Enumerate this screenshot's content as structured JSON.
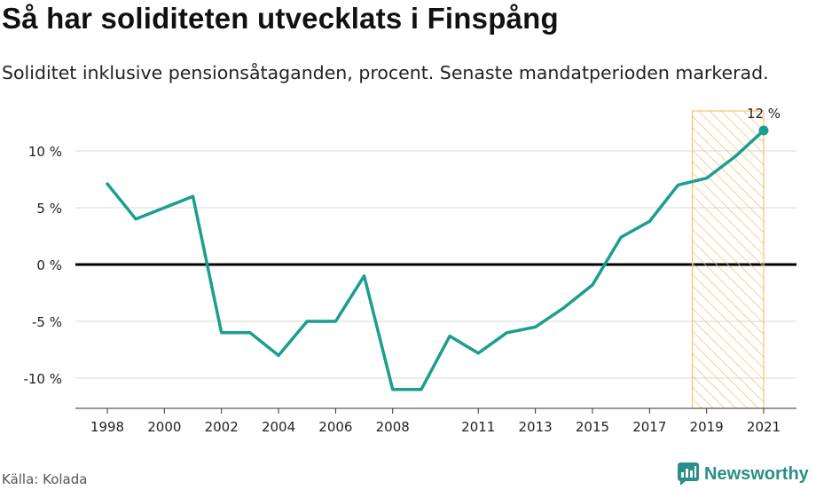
{
  "title": "Så har soliditeten utvecklats i Finspång",
  "subtitle": "Soliditet inklusive pensionsåtaganden, procent. Senaste mandatperioden markerad.",
  "source": "Källa: Kolada",
  "brand": "Newsworthy",
  "colors": {
    "line": "#1a9e8f",
    "zero": "#000000",
    "highlight": "#f5c46b",
    "grid": "#d9d9d9"
  },
  "chart_data": {
    "type": "line",
    "title": "Så har soliditeten utvecklats i Finspång",
    "subtitle": "Soliditet inklusive pensionsåtaganden, procent. Senaste mandatperioden markerad.",
    "x": [
      1998,
      1999,
      2000,
      2001,
      2002,
      2003,
      2004,
      2005,
      2006,
      2007,
      2008,
      2009,
      2010,
      2011,
      2012,
      2013,
      2014,
      2015,
      2016,
      2017,
      2018,
      2019,
      2020,
      2021
    ],
    "series": [
      {
        "values": [
          7.1,
          4.0,
          5.0,
          6.0,
          -6.0,
          -6.0,
          -8.0,
          -5.0,
          -5.0,
          -1.0,
          -11.0,
          -11.0,
          -6.3,
          -7.8,
          -6.0,
          -5.5,
          -3.8,
          -1.8,
          2.4,
          3.8,
          7.0,
          7.6,
          9.5,
          11.8
        ]
      }
    ],
    "xticks": [
      "1998",
      "2000",
      "2002",
      "2004",
      "2006",
      "2008",
      "2011",
      "2013",
      "2015",
      "2017",
      "2019",
      "2021"
    ],
    "yticks": [
      {
        "value": 10,
        "label": "10 %"
      },
      {
        "value": 5,
        "label": "5 %"
      },
      {
        "value": 0,
        "label": "0 %"
      },
      {
        "value": -5,
        "label": "-5 %"
      },
      {
        "value": -10,
        "label": "-10 %"
      }
    ],
    "ylim": [
      -12.5,
      13.5
    ],
    "xlim": [
      1997,
      2022
    ],
    "highlight_range": [
      2018.5,
      2021
    ],
    "end_label": "12 %",
    "grid": true,
    "legend": "none"
  }
}
